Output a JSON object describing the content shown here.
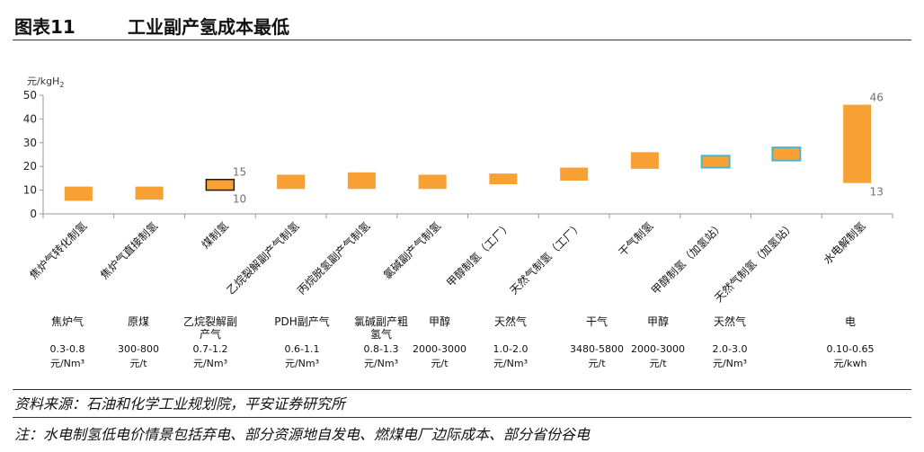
{
  "header": {
    "figure_label": "图表11",
    "title": "工业副产氢成本最低"
  },
  "chart_data": {
    "type": "floating-bar",
    "title": "工业副产氢成本最低",
    "ylabel": "元/kgH",
    "ylabel_sub": "2",
    "ylim": [
      0,
      50
    ],
    "yticks": [
      0,
      10,
      20,
      30,
      40,
      50
    ],
    "categories": [
      "焦炉气转化制氢",
      "焦炉气直接制氢",
      "煤制氢",
      "乙烷裂解副产气制氢",
      "丙烷脱氢副产气制氢",
      "氯碱副产气制氢",
      "甲醇制氢（工厂）",
      "天然气制氢（工厂）",
      "干气制氢",
      "甲醇制氢（加氢站）",
      "天然气制氢（加氢站）",
      "水电解制氢"
    ],
    "ranges": [
      [
        5.5,
        11.5
      ],
      [
        6.0,
        11.5
      ],
      [
        10.0,
        14.5
      ],
      [
        10.5,
        16.5
      ],
      [
        10.5,
        17.5
      ],
      [
        10.5,
        16.5
      ],
      [
        12.5,
        17.0
      ],
      [
        14.0,
        19.5
      ],
      [
        19.0,
        26.0
      ],
      [
        19.5,
        24.5
      ],
      [
        22.5,
        28.0
      ],
      [
        13.0,
        46.0
      ]
    ],
    "styles": [
      "normal",
      "normal",
      "dark-outline",
      "normal",
      "normal",
      "normal",
      "normal",
      "normal",
      "normal",
      "blue-outline",
      "blue-outline",
      "normal"
    ],
    "data_labels": [
      {
        "index": 2,
        "low": "10",
        "high": "15"
      },
      {
        "index": 11,
        "low": "13",
        "high": "46"
      }
    ],
    "colors": {
      "bar": "#f7a033",
      "dark_outline": "#1a1a1a",
      "blue_outline": "#4bb6cf",
      "axis": "#9a9a9a",
      "label": "#707070"
    }
  },
  "feedstock_table": {
    "names": [
      "焦炉气",
      "原煤",
      "乙烷裂解副产气",
      "PDH副产气",
      "氯碱副产粗氢气",
      "甲醇",
      "天然气",
      "干气",
      "甲醇",
      "天然气",
      "电"
    ],
    "prices": [
      "0.3-0.8",
      "300-800",
      "0.7-1.2",
      "0.6-1.1",
      "0.8-1.3",
      "2000-3000",
      "1.0-2.0",
      "3480-5800",
      "2000-3000",
      "2.0-3.0",
      "0.10-0.65"
    ],
    "units": [
      "元/Nm³",
      "元/t",
      "元/Nm³",
      "元/Nm³",
      "元/Nm³",
      "元/t",
      "元/Nm³",
      "元/t",
      "元/t",
      "元/Nm³",
      "元/kwh"
    ]
  },
  "footer": {
    "source": "资料来源：石油和化学工业规划院，平安证券研究所",
    "note": "注：水电制氢低电价情景包括弃电、部分资源地自发电、燃煤电厂边际成本、部分省份谷电"
  }
}
